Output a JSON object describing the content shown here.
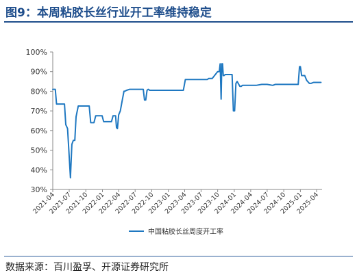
{
  "header": {
    "title": "图9：本周粘胶长丝行业开工率维持稳定"
  },
  "footer": {
    "source": "数据来源：百川盈孚、开源证券研究所"
  },
  "colors": {
    "title": "#1f4e8c",
    "series": "#1f78c1",
    "axis": "#888888"
  },
  "chart_data": {
    "type": "line",
    "title": "",
    "xlabel": "",
    "ylabel": "",
    "ylim": [
      30,
      100
    ],
    "y_ticks": [
      "30%",
      "40%",
      "50%",
      "60%",
      "70%",
      "80%",
      "90%",
      "100%"
    ],
    "y_tick_values": [
      30,
      40,
      50,
      60,
      70,
      80,
      90,
      100
    ],
    "x_ticks": [
      "2021-04",
      "2021-07",
      "2021-10",
      "2022-01",
      "2022-04",
      "2022-07",
      "2022-10",
      "2023-01",
      "2023-04",
      "2023-07",
      "2023-10",
      "2024-01",
      "2024-04",
      "2024-07",
      "2024-10",
      "2025-01",
      "2025-04"
    ],
    "xlim": [
      "2021-04-01",
      "2025-05-01"
    ],
    "grid": false,
    "legend_position": "bottom-center",
    "series": [
      {
        "name": "中国粘胶长丝周度开工率",
        "x": [
          "2021-04-01",
          "2021-04-15",
          "2021-04-22",
          "2021-06-05",
          "2021-06-12",
          "2021-06-22",
          "2021-07-08",
          "2021-07-16",
          "2021-07-24",
          "2021-08-01",
          "2021-08-08",
          "2021-08-20",
          "2021-08-30",
          "2021-09-10",
          "2021-10-20",
          "2021-10-28",
          "2021-11-15",
          "2021-11-25",
          "2021-12-30",
          "2022-01-08",
          "2022-02-20",
          "2022-03-01",
          "2022-03-15",
          "2022-03-20",
          "2022-03-25",
          "2022-04-01",
          "2022-04-10",
          "2022-04-20",
          "2022-04-30",
          "2022-05-05",
          "2022-05-15",
          "2022-06-01",
          "2022-06-15",
          "2022-08-15",
          "2022-08-22",
          "2022-08-29",
          "2022-09-05",
          "2022-09-12",
          "2022-09-20",
          "2022-10-01",
          "2022-12-01",
          "2023-02-01",
          "2023-03-25",
          "2023-04-05",
          "2023-05-01",
          "2023-07-01",
          "2023-08-05",
          "2023-08-12",
          "2023-09-01",
          "2023-10-01",
          "2023-10-05",
          "2023-10-10",
          "2023-10-15",
          "2023-10-20",
          "2023-10-24",
          "2023-10-28",
          "2023-11-01",
          "2023-11-05",
          "2023-11-12",
          "2023-11-19",
          "2023-12-20",
          "2023-12-27",
          "2024-01-03",
          "2024-01-10",
          "2024-01-17",
          "2024-02-01",
          "2024-02-08",
          "2024-02-15",
          "2024-03-01",
          "2024-04-01",
          "2024-05-01",
          "2024-06-01",
          "2024-07-01",
          "2024-08-01",
          "2024-08-15",
          "2024-09-01",
          "2024-11-01",
          "2024-12-20",
          "2024-12-27",
          "2025-01-01",
          "2025-01-08",
          "2025-01-15",
          "2025-01-25",
          "2025-02-05",
          "2025-02-20",
          "2025-03-01",
          "2025-03-15",
          "2025-04-01",
          "2025-04-25"
        ],
        "values": [
          81,
          81,
          73.5,
          73.5,
          63,
          61,
          36,
          53,
          55,
          55,
          67,
          72.5,
          72.5,
          72.5,
          72.5,
          64,
          64,
          67.5,
          67.5,
          64.5,
          64.5,
          67.5,
          67.5,
          61.5,
          61,
          68,
          70,
          75,
          80,
          80,
          80.5,
          81,
          81,
          81,
          75.5,
          75.5,
          80.5,
          81,
          80.5,
          80.5,
          80.5,
          80.5,
          80.5,
          86,
          86,
          86,
          86,
          86.5,
          86.5,
          90,
          90,
          90,
          94,
          76,
          94,
          94,
          88,
          88,
          88.5,
          88.5,
          88.5,
          70,
          70,
          84,
          85,
          82.5,
          82.5,
          83,
          83,
          83,
          83,
          83.5,
          83.5,
          83,
          83.5,
          83.5,
          83.5,
          83.5,
          92.5,
          92.5,
          88,
          88,
          88,
          85.5,
          84,
          84,
          84.5,
          84.5,
          84.5
        ]
      }
    ]
  }
}
